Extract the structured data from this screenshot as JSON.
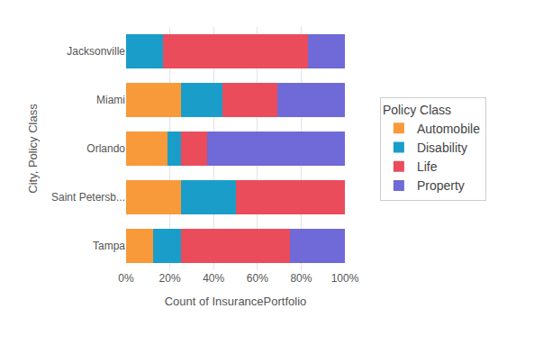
{
  "chart_data": {
    "type": "bar",
    "orientation": "horizontal",
    "stacked": true,
    "grid": true,
    "legend": "right",
    "legend_title": "Policy Class",
    "xlabel": "Count of InsurancePortfolio",
    "ylabel": "City, Policy Class",
    "categories": [
      "Jacksonville",
      "Miami",
      "Orlando",
      "Saint Petersb...",
      "Tampa"
    ],
    "series": [
      {
        "name": "Automobile",
        "color": "#f89a3a",
        "values": [
          0,
          25,
          19,
          25,
          12.5
        ]
      },
      {
        "name": "Disability",
        "color": "#1a9ec9",
        "values": [
          17,
          19,
          6,
          25,
          12.5
        ]
      },
      {
        "name": "Life",
        "color": "#ea4c5c",
        "values": [
          66,
          25,
          12,
          50,
          50
        ]
      },
      {
        "name": "Property",
        "color": "#6f6ad8",
        "values": [
          17,
          31,
          63,
          0,
          25
        ]
      }
    ],
    "xlim": [
      0,
      100
    ],
    "xticks": [
      {
        "value": 0,
        "label": "0%"
      },
      {
        "value": 20,
        "label": "20%"
      },
      {
        "value": 40,
        "label": "40%"
      },
      {
        "value": 60,
        "label": "60%"
      },
      {
        "value": 80,
        "label": "80%"
      },
      {
        "value": 100,
        "label": "100%"
      }
    ]
  }
}
